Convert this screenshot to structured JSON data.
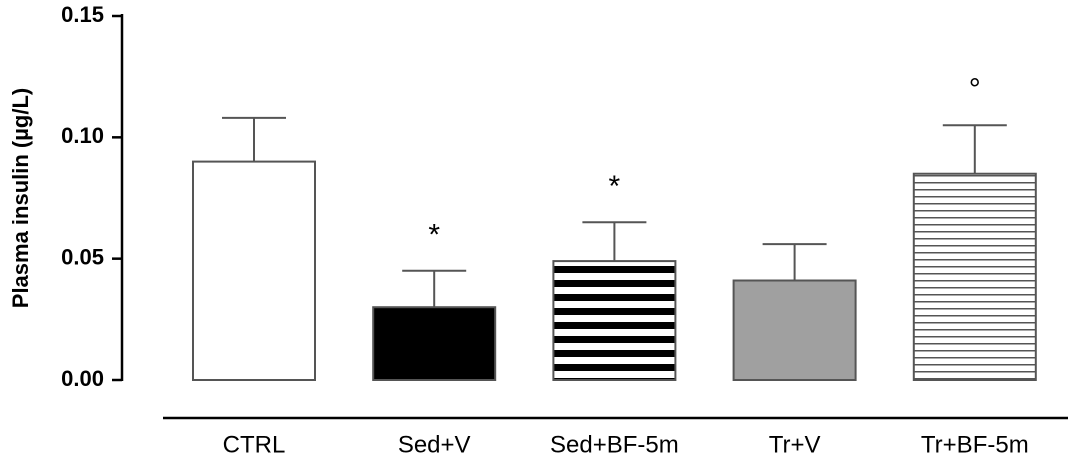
{
  "chart_data": {
    "type": "bar",
    "y_label": "Plasma insulin (µg/L)",
    "categories": [
      "CTRL",
      "Sed+V",
      "Sed+BF-5m",
      "Tr+V",
      "Tr+BF-5m"
    ],
    "values": [
      0.09,
      0.03,
      0.049,
      0.041,
      0.085
    ],
    "errors": [
      0.018,
      0.015,
      0.016,
      0.015,
      0.02
    ],
    "colors": [
      "#ffffff",
      "#000000",
      "#ffffff",
      "#a0a0a0",
      "#ffffff"
    ],
    "patterns": [
      "none",
      "none",
      "thick-stripes",
      "none",
      "thin-stripes"
    ],
    "annotations": [
      null,
      "*",
      "*",
      null,
      "°"
    ],
    "ylim": [
      0,
      0.15
    ],
    "yticks": [
      {
        "value": 0,
        "label": "0.00"
      },
      {
        "value": 0.05,
        "label": "0.05"
      },
      {
        "value": 0.1,
        "label": "0.10"
      },
      {
        "value": 0.15,
        "label": "0.15"
      }
    ],
    "grid": false
  }
}
